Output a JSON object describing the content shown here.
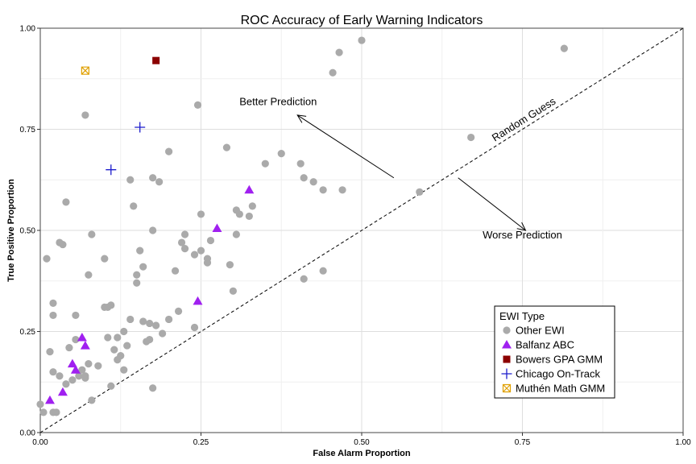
{
  "chart_data": {
    "type": "scatter",
    "title": "ROC Accuracy of Early Warning Indicators",
    "xlabel": "False Alarm Proportion",
    "ylabel": "True Positive Proportion",
    "xlim": [
      0,
      1
    ],
    "ylim": [
      0,
      1
    ],
    "x_ticks": [
      "0.00",
      "0.25",
      "0.50",
      "0.75",
      "1.00"
    ],
    "y_ticks": [
      "0.00",
      "0.25",
      "0.50",
      "0.75",
      "1.00"
    ],
    "grid": true,
    "reference_line": {
      "label": "Random Guess",
      "from": [
        0,
        0
      ],
      "to": [
        1,
        1
      ],
      "style": "dashed"
    },
    "annotations": [
      {
        "text": "Better Prediction",
        "text_at": [
          0.37,
          0.81
        ],
        "arrow_from": [
          0.55,
          0.63
        ],
        "arrow_to": [
          0.4,
          0.785
        ]
      },
      {
        "text": "Worse Prediction",
        "text_at": [
          0.75,
          0.48
        ],
        "arrow_from": [
          0.65,
          0.63
        ],
        "arrow_to": [
          0.755,
          0.5
        ]
      }
    ],
    "legend": {
      "title": "EWI Type",
      "position": "bottom-right"
    },
    "series": [
      {
        "name": "Other EWI",
        "marker": "circle",
        "color": "#aaaaaa",
        "points": [
          [
            0.0,
            0.07
          ],
          [
            0.005,
            0.05
          ],
          [
            0.02,
            0.05
          ],
          [
            0.025,
            0.05
          ],
          [
            0.01,
            0.43
          ],
          [
            0.015,
            0.2
          ],
          [
            0.02,
            0.29
          ],
          [
            0.02,
            0.32
          ],
          [
            0.02,
            0.15
          ],
          [
            0.03,
            0.14
          ],
          [
            0.03,
            0.47
          ],
          [
            0.035,
            0.465
          ],
          [
            0.04,
            0.12
          ],
          [
            0.04,
            0.57
          ],
          [
            0.045,
            0.21
          ],
          [
            0.05,
            0.13
          ],
          [
            0.055,
            0.29
          ],
          [
            0.055,
            0.23
          ],
          [
            0.06,
            0.14
          ],
          [
            0.065,
            0.155
          ],
          [
            0.07,
            0.14
          ],
          [
            0.07,
            0.785
          ],
          [
            0.07,
            0.135
          ],
          [
            0.075,
            0.17
          ],
          [
            0.075,
            0.39
          ],
          [
            0.08,
            0.49
          ],
          [
            0.08,
            0.08
          ],
          [
            0.09,
            0.165
          ],
          [
            0.1,
            0.43
          ],
          [
            0.1,
            0.31
          ],
          [
            0.105,
            0.31
          ],
          [
            0.105,
            0.235
          ],
          [
            0.11,
            0.315
          ],
          [
            0.11,
            0.115
          ],
          [
            0.115,
            0.205
          ],
          [
            0.12,
            0.18
          ],
          [
            0.12,
            0.235
          ],
          [
            0.125,
            0.19
          ],
          [
            0.13,
            0.155
          ],
          [
            0.13,
            0.25
          ],
          [
            0.135,
            0.215
          ],
          [
            0.14,
            0.28
          ],
          [
            0.14,
            0.625
          ],
          [
            0.145,
            0.56
          ],
          [
            0.15,
            0.39
          ],
          [
            0.15,
            0.37
          ],
          [
            0.155,
            0.45
          ],
          [
            0.16,
            0.275
          ],
          [
            0.16,
            0.41
          ],
          [
            0.165,
            0.225
          ],
          [
            0.17,
            0.27
          ],
          [
            0.17,
            0.23
          ],
          [
            0.175,
            0.11
          ],
          [
            0.175,
            0.5
          ],
          [
            0.175,
            0.63
          ],
          [
            0.18,
            0.265
          ],
          [
            0.185,
            0.62
          ],
          [
            0.19,
            0.245
          ],
          [
            0.2,
            0.28
          ],
          [
            0.2,
            0.695
          ],
          [
            0.21,
            0.4
          ],
          [
            0.215,
            0.3
          ],
          [
            0.22,
            0.47
          ],
          [
            0.225,
            0.49
          ],
          [
            0.225,
            0.455
          ],
          [
            0.24,
            0.26
          ],
          [
            0.24,
            0.44
          ],
          [
            0.245,
            0.81
          ],
          [
            0.25,
            0.54
          ],
          [
            0.25,
            0.45
          ],
          [
            0.26,
            0.43
          ],
          [
            0.26,
            0.42
          ],
          [
            0.265,
            0.475
          ],
          [
            0.29,
            0.705
          ],
          [
            0.295,
            0.415
          ],
          [
            0.3,
            0.35
          ],
          [
            0.305,
            0.49
          ],
          [
            0.305,
            0.55
          ],
          [
            0.31,
            0.54
          ],
          [
            0.325,
            0.535
          ],
          [
            0.33,
            0.56
          ],
          [
            0.35,
            0.665
          ],
          [
            0.375,
            0.69
          ],
          [
            0.405,
            0.665
          ],
          [
            0.41,
            0.38
          ],
          [
            0.41,
            0.63
          ],
          [
            0.425,
            0.62
          ],
          [
            0.44,
            0.4
          ],
          [
            0.44,
            0.6
          ],
          [
            0.455,
            0.89
          ],
          [
            0.465,
            0.94
          ],
          [
            0.47,
            0.6
          ],
          [
            0.5,
            0.97
          ],
          [
            0.59,
            0.595
          ],
          [
            0.67,
            0.73
          ],
          [
            0.815,
            0.95
          ]
        ]
      },
      {
        "name": "Balfanz ABC",
        "marker": "triangle",
        "color": "#a020f0",
        "points": [
          [
            0.015,
            0.08
          ],
          [
            0.035,
            0.1
          ],
          [
            0.05,
            0.17
          ],
          [
            0.055,
            0.155
          ],
          [
            0.065,
            0.235
          ],
          [
            0.07,
            0.215
          ],
          [
            0.245,
            0.325
          ],
          [
            0.275,
            0.505
          ],
          [
            0.325,
            0.6
          ]
        ]
      },
      {
        "name": "Bowers GPA GMM",
        "marker": "square",
        "color": "#8b0000",
        "points": [
          [
            0.18,
            0.92
          ]
        ]
      },
      {
        "name": "Chicago On-Track",
        "marker": "plus",
        "color": "#1c1ccc",
        "points": [
          [
            0.11,
            0.65
          ],
          [
            0.155,
            0.755
          ]
        ]
      },
      {
        "name": "Muthén Math GMM",
        "marker": "boxx",
        "color": "#e0a000",
        "points": [
          [
            0.07,
            0.895
          ]
        ]
      }
    ]
  }
}
